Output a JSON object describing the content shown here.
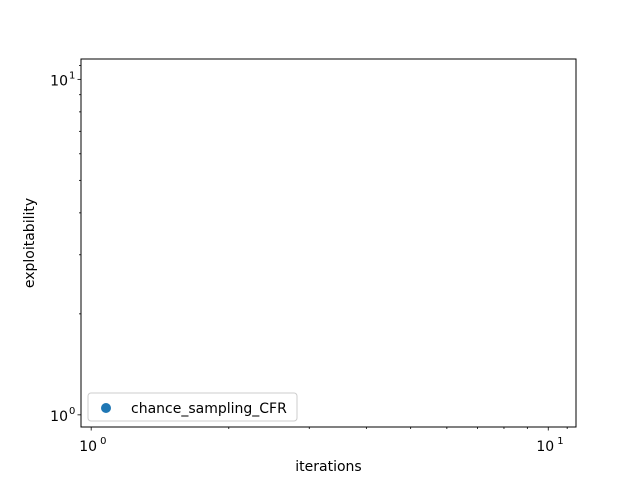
{
  "chart_data": {
    "type": "scatter",
    "title": "",
    "xlabel": "iterations",
    "ylabel": "exploitability",
    "xscale": "log",
    "yscale": "log",
    "xlim": [
      0.95,
      11.5
    ],
    "ylim": [
      0.92,
      11.5
    ],
    "x_ticks": [
      {
        "base": "10",
        "exp": "0",
        "value": 1
      },
      {
        "base": "10",
        "exp": "1",
        "value": 10
      }
    ],
    "y_ticks": [
      {
        "base": "10",
        "exp": "0",
        "value": 1
      },
      {
        "base": "10",
        "exp": "1",
        "value": 10
      }
    ],
    "grid": false,
    "legend_position": "lower-left",
    "series": [
      {
        "name": "chance_sampling_CFR",
        "color": "#1f77b4",
        "marker": "circle",
        "x": [],
        "y": []
      }
    ]
  }
}
